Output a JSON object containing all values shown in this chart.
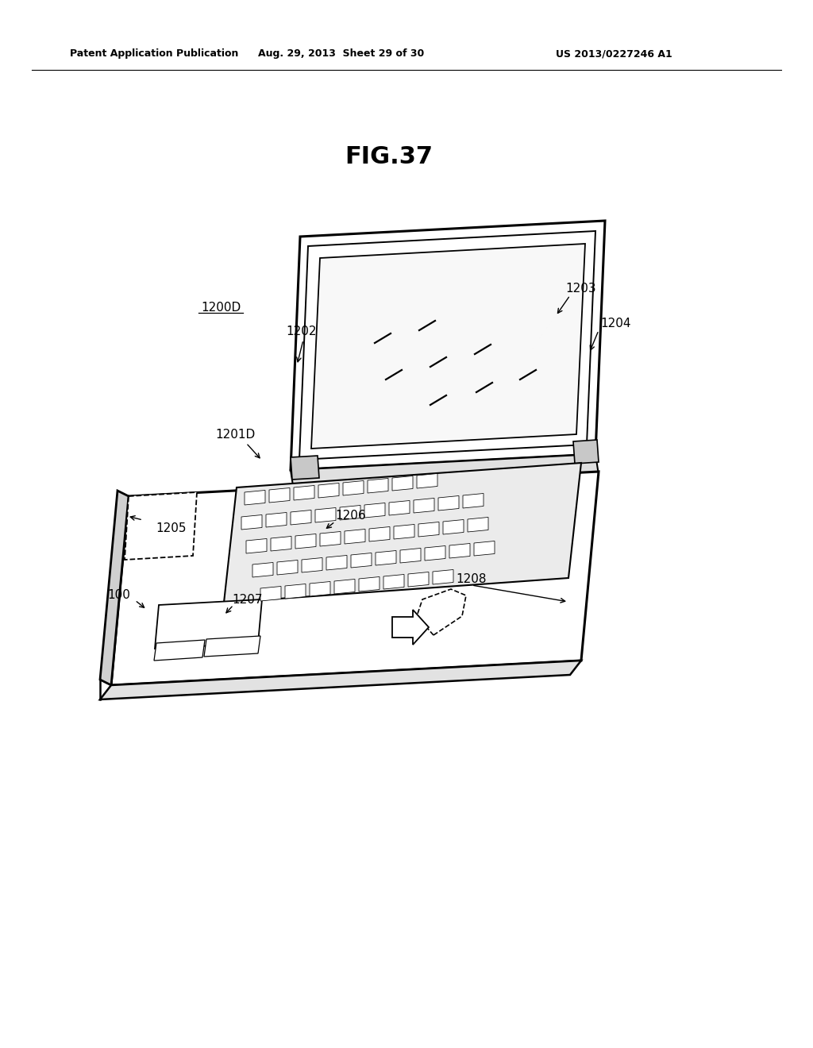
{
  "bg_color": "#ffffff",
  "header_left": "Patent Application Publication",
  "header_mid": "Aug. 29, 2013  Sheet 29 of 30",
  "header_right": "US 2013/0227246 A1",
  "fig_label": "FIG.37",
  "page_width": 10.24,
  "page_height": 13.2,
  "dpi": 100
}
